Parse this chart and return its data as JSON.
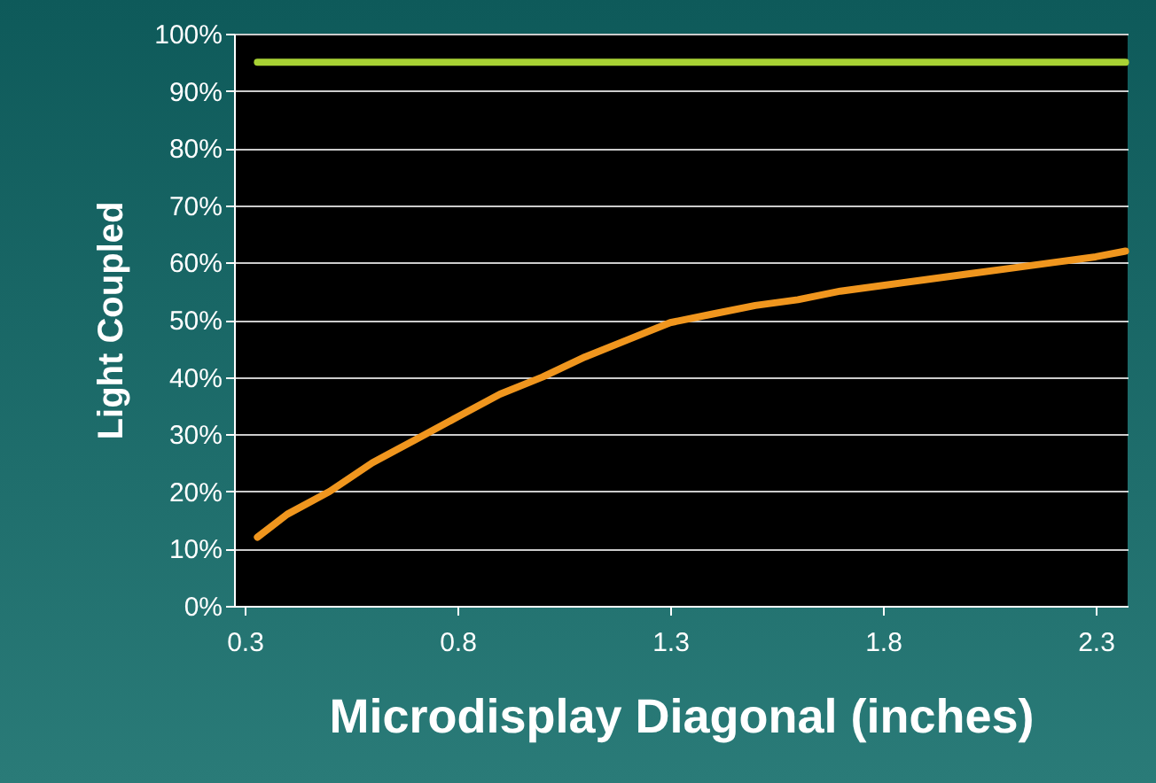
{
  "chart_data": {
    "type": "line",
    "xlabel": "Microdisplay Diagonal (inches)",
    "ylabel": "Light Coupled",
    "xlim": [
      0.275,
      2.375
    ],
    "xticks": [
      0.3,
      0.8,
      1.3,
      1.8,
      2.3
    ],
    "ylim": [
      0,
      100
    ],
    "yticks": [
      {
        "value": 0,
        "label": "0%"
      },
      {
        "value": 10,
        "label": "10%"
      },
      {
        "value": 20,
        "label": "20%"
      },
      {
        "value": 30,
        "label": "30%"
      },
      {
        "value": 40,
        "label": "40%"
      },
      {
        "value": 50,
        "label": "50%"
      },
      {
        "value": 60,
        "label": "60%"
      },
      {
        "value": 70,
        "label": "70%"
      },
      {
        "value": 80,
        "label": "80%"
      },
      {
        "value": 90,
        "label": "90%"
      },
      {
        "value": 100,
        "label": "100%"
      }
    ],
    "grid": "y",
    "marker": "none",
    "line_style": "solid",
    "series": [
      {
        "color": "#a8d234",
        "x": [
          0.33,
          2.37
        ],
        "values": [
          95,
          95
        ]
      },
      {
        "color": "#f0961e",
        "x": [
          0.33,
          0.4,
          0.5,
          0.6,
          0.7,
          0.8,
          0.9,
          1.0,
          1.1,
          1.2,
          1.3,
          1.4,
          1.5,
          1.6,
          1.7,
          1.8,
          1.9,
          2.0,
          2.1,
          2.2,
          2.3,
          2.37
        ],
        "values": [
          12,
          16,
          20,
          25,
          29,
          33,
          37,
          40,
          43.5,
          46.5,
          49.5,
          51,
          52.5,
          53.5,
          55,
          56,
          57,
          58,
          59,
          60,
          61,
          62
        ]
      }
    ]
  }
}
